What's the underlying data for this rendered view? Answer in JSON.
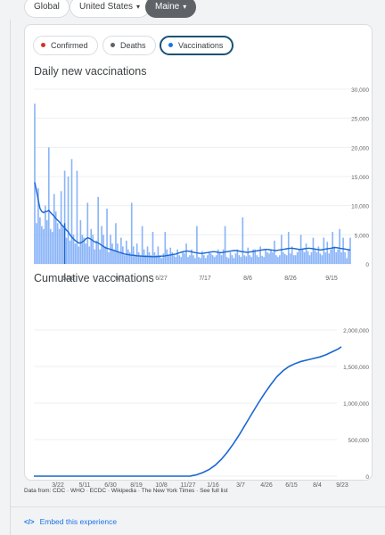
{
  "location_chips": [
    {
      "label": "Global",
      "active": false
    },
    {
      "label": "United States",
      "active": false,
      "caret": "▾"
    },
    {
      "label": "Maine",
      "active": true,
      "caret": "▾"
    }
  ],
  "metric_tabs": [
    {
      "label": "Confirmed",
      "dot_color": "#d93025",
      "active": false
    },
    {
      "label": "Deaths",
      "dot_color": "#5f6368",
      "active": false
    },
    {
      "label": "Vaccinations",
      "dot_color": "#1a73e8",
      "active": true
    }
  ],
  "colors": {
    "accent": "#1a73e8",
    "bar": "#8ab4f8",
    "line": "#1967d2",
    "grid": "#e8eaed"
  },
  "chart_data": [
    {
      "type": "bar",
      "title": "Daily new vaccinations",
      "x_tick_labels": [
        "5/18",
        "6/7",
        "6/27",
        "7/17",
        "8/6",
        "8/26",
        "9/15"
      ],
      "y_tick_labels": [
        "30,000",
        "25,000",
        "20,000",
        "15,000",
        "10,000",
        "5,000",
        "0"
      ],
      "ylim": [
        0,
        30000
      ],
      "grid": true,
      "daily_values": [
        27500,
        7000,
        13000,
        8000,
        6500,
        6000,
        10000,
        7500,
        20000,
        6000,
        5500,
        12000,
        9000,
        7000,
        6000,
        12500,
        6500,
        16000,
        4500,
        15000,
        4000,
        18000,
        5000,
        3500,
        16000,
        3000,
        7500,
        5000,
        4500,
        3500,
        10500,
        3000,
        6000,
        5000,
        2500,
        4000,
        11500,
        2500,
        6500,
        5000,
        3000,
        9500,
        2000,
        5000,
        3500,
        2500,
        7000,
        3500,
        2000,
        4500,
        3000,
        1500,
        4000,
        2500,
        2000,
        10500,
        3000,
        1500,
        3500,
        2000,
        1500,
        6500,
        2500,
        1500,
        3000,
        2000,
        1500,
        5500,
        2000,
        1500,
        3000,
        1500,
        1000,
        1800,
        5500,
        2500,
        1500,
        2800,
        2000,
        1500,
        1200,
        2500,
        1500,
        1200,
        2000,
        1800,
        3500,
        1200,
        1500,
        2500,
        1500,
        1000,
        6500,
        1200,
        1000,
        2200,
        1500,
        1000,
        1500,
        2000,
        1800,
        1500,
        1200,
        1500,
        2500,
        2000,
        1500,
        2500,
        6500,
        1200,
        1000,
        2000,
        1500,
        1000,
        1800,
        2500,
        1500,
        1200,
        8000,
        1500,
        1300,
        2800,
        1500,
        1200,
        2500,
        2500,
        1500,
        1200,
        3000,
        1400,
        1200,
        2500,
        2000,
        1800,
        2500,
        2000,
        4000,
        1500,
        1200,
        1500,
        5000,
        2000,
        1700,
        1500,
        5500,
        1800,
        3000,
        1500,
        1500,
        2000,
        2500,
        5000,
        2500,
        2000,
        3500,
        2200,
        1500,
        2000,
        4500,
        2500,
        2000,
        3000,
        1800,
        1500,
        4500,
        2000,
        3800,
        1800,
        2500,
        5500,
        3000,
        2000,
        2500,
        6000,
        2000,
        4500,
        2000,
        1000,
        2500,
        4500
      ],
      "seven_day_avg": [
        14000,
        12500,
        11000,
        9500,
        9000,
        8800,
        9000,
        9000,
        9200,
        8800,
        8500,
        8200,
        7800,
        7500,
        7200,
        6800,
        6500,
        6200,
        5800,
        5500,
        5000,
        4600,
        4300,
        4000,
        3800,
        3600,
        3600,
        3800,
        4000,
        4300,
        4500,
        4400,
        4200,
        4000,
        3800,
        3700,
        3600,
        3400,
        3200,
        3000,
        2800,
        2700,
        2600,
        2500,
        2400,
        2300,
        2200,
        2100,
        2000,
        1900,
        1800,
        1700,
        1650,
        1600,
        1550,
        1500,
        1500,
        1450,
        1400,
        1400,
        1350,
        1350,
        1300,
        1300,
        1300,
        1280,
        1260,
        1250,
        1250,
        1250,
        1300,
        1300,
        1350,
        1350,
        1400,
        1450,
        1500,
        1550,
        1600,
        1650,
        1700,
        1800,
        1900,
        2000,
        2100,
        2150,
        2200,
        2200,
        2150,
        2100,
        2000,
        1950,
        1900,
        1850,
        1800,
        1800,
        1850,
        1900,
        1950,
        2000,
        2050,
        2100,
        2100,
        2050,
        2000,
        1950,
        1950,
        2000,
        2050,
        2100,
        2150,
        2200,
        2250,
        2300,
        2300,
        2250,
        2200,
        2150,
        2100,
        2050,
        2000,
        2000,
        2050,
        2100,
        2150,
        2200,
        2250,
        2300,
        2350,
        2400,
        2450,
        2500,
        2500,
        2450,
        2400,
        2350,
        2300,
        2300,
        2350,
        2400,
        2450,
        2500,
        2550,
        2600,
        2650,
        2700,
        2700,
        2650,
        2600,
        2550,
        2500,
        2500,
        2550,
        2600,
        2650,
        2700,
        2700,
        2650,
        2600,
        2550,
        2500,
        2450,
        2400,
        2450,
        2500,
        2550,
        2600,
        2650,
        2700,
        2750,
        2800,
        2800,
        2750,
        2700,
        2650,
        2600,
        2550,
        2500,
        2450,
        2400
      ]
    },
    {
      "type": "line",
      "title": "Cumulative vaccinations",
      "x_tick_labels": [
        "3/22",
        "5/11",
        "6/30",
        "8/19",
        "10/8",
        "11/27",
        "1/16",
        "3/7",
        "4/26",
        "6/15",
        "8/4",
        "9/23"
      ],
      "y_tick_labels": [
        "2,000,000",
        "1,500,000",
        "1,000,000",
        "500,000",
        "0"
      ],
      "ylim": [
        0,
        2000000
      ],
      "grid": true,
      "points": [
        [
          0,
          0
        ],
        [
          0.508,
          0
        ],
        [
          0.51,
          2000
        ],
        [
          0.53,
          20000
        ],
        [
          0.55,
          50000
        ],
        [
          0.57,
          90000
        ],
        [
          0.59,
          150000
        ],
        [
          0.61,
          230000
        ],
        [
          0.63,
          330000
        ],
        [
          0.65,
          450000
        ],
        [
          0.67,
          580000
        ],
        [
          0.69,
          720000
        ],
        [
          0.71,
          860000
        ],
        [
          0.73,
          1000000
        ],
        [
          0.75,
          1130000
        ],
        [
          0.77,
          1250000
        ],
        [
          0.79,
          1360000
        ],
        [
          0.81,
          1440000
        ],
        [
          0.83,
          1500000
        ],
        [
          0.85,
          1540000
        ],
        [
          0.87,
          1570000
        ],
        [
          0.89,
          1590000
        ],
        [
          0.91,
          1610000
        ],
        [
          0.93,
          1630000
        ],
        [
          0.95,
          1660000
        ],
        [
          0.97,
          1700000
        ],
        [
          0.99,
          1740000
        ],
        [
          1.0,
          1770000
        ]
      ]
    }
  ],
  "footer": {
    "data_source": "Data from: CDC · WHO · ECDC · Wikipedia · The New York Times · See full list",
    "embed_icon": "code-icon",
    "embed_glyph": "</>",
    "embed_label": "Embed this experience"
  }
}
